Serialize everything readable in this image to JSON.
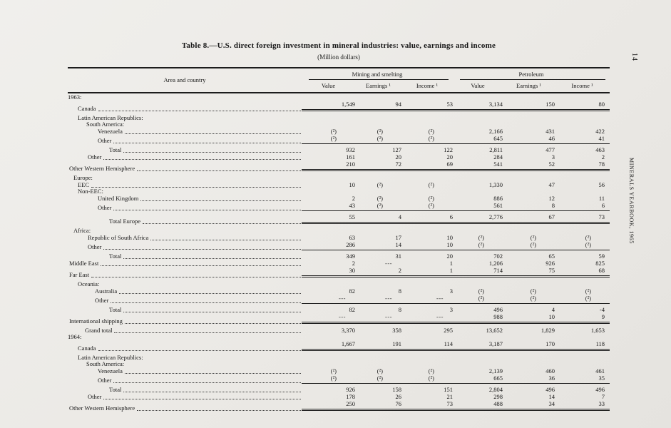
{
  "page": {
    "page_number": "14",
    "margin_text": "MINERALS YEARBOOK, 1965"
  },
  "table": {
    "title": "Table 8.—U.S. direct foreign investment in mineral industries:  value, earnings and income",
    "subtitle": "(Million dollars)",
    "stub_header": "Area and country",
    "col_groups": [
      {
        "label": "Mining and smelting",
        "cols": [
          "Value",
          "Earnings ¹",
          "Income ¹"
        ]
      },
      {
        "label": "Petroleum",
        "cols": [
          "Value",
          "Earnings ¹",
          "Income ¹"
        ]
      }
    ],
    "rows": [
      {
        "label": "1963:",
        "indent": 0,
        "leader": false,
        "cells": null
      },
      {
        "label": "Canada",
        "indent": 14,
        "leader": true,
        "cells": [
          "1,549",
          "94",
          "53",
          "3,134",
          "150",
          "80"
        ],
        "rule_below": "double"
      },
      {
        "label": "Latin American Republics:",
        "indent": 14,
        "leader": false,
        "cells": null,
        "gap_above": 4
      },
      {
        "label": "South America:",
        "indent": 26,
        "leader": false,
        "cells": null
      },
      {
        "label": "Venezuela",
        "indent": 42,
        "leader": true,
        "cells": [
          "(²)",
          "(²)",
          "(²)",
          "2,166",
          "431",
          "422"
        ]
      },
      {
        "label": "Other",
        "indent": 42,
        "leader": true,
        "cells": [
          "(²)",
          "(²)",
          "(²)",
          "645",
          "46",
          "41"
        ],
        "rule_below": "single"
      },
      {
        "label": "Total",
        "indent": 58,
        "leader": true,
        "cells": [
          "932",
          "127",
          "122",
          "2,811",
          "477",
          "463"
        ],
        "gap_above": 3
      },
      {
        "label": "Other",
        "indent": 28,
        "leader": true,
        "cells": [
          "161",
          "20",
          "20",
          "284",
          "3",
          "2"
        ]
      },
      {
        "label": "Other Western Hemisphere",
        "indent": 2,
        "leader": true,
        "cells": [
          "210",
          "72",
          "69",
          "541",
          "52",
          "78"
        ],
        "rule_below": "double"
      },
      {
        "label": "Europe:",
        "indent": 8,
        "leader": false,
        "cells": null,
        "gap_above": 4
      },
      {
        "label": "EEC",
        "indent": 14,
        "leader": true,
        "cells": [
          "10",
          "(²)",
          "(²)",
          "1,330",
          "47",
          "56"
        ]
      },
      {
        "label": "Non-EEC:",
        "indent": 14,
        "leader": false,
        "cells": null
      },
      {
        "label": "United Kingdom",
        "indent": 42,
        "leader": true,
        "cells": [
          "2",
          "(²)",
          "(²)",
          "886",
          "12",
          "11"
        ]
      },
      {
        "label": "Other",
        "indent": 42,
        "leader": true,
        "cells": [
          "43",
          "(²)",
          "(²)",
          "561",
          "8",
          "6"
        ],
        "rule_below": "single"
      },
      {
        "label": "Total Europe",
        "indent": 58,
        "leader": true,
        "cells": [
          "55",
          "4",
          "6",
          "2,776",
          "67",
          "73"
        ],
        "gap_above": 3,
        "rule_below": "double"
      },
      {
        "label": "Africa:",
        "indent": 8,
        "leader": false,
        "cells": null,
        "gap_above": 4
      },
      {
        "label": "Republic of South Africa",
        "indent": 28,
        "leader": true,
        "cells": [
          "63",
          "17",
          "10",
          "(²)",
          "(²)",
          "(²)"
        ]
      },
      {
        "label": "Other",
        "indent": 28,
        "leader": true,
        "cells": [
          "286",
          "14",
          "10",
          "(²)",
          "(²)",
          "(²)"
        ],
        "rule_below": "single"
      },
      {
        "label": "Total",
        "indent": 58,
        "leader": true,
        "cells": [
          "349",
          "31",
          "20",
          "702",
          "65",
          "59"
        ],
        "gap_above": 3
      },
      {
        "label": "Middle East",
        "indent": 2,
        "leader": true,
        "cells": [
          "2",
          "---",
          "1",
          "1,206",
          "926",
          "825"
        ]
      },
      {
        "label": "Far East",
        "indent": 2,
        "leader": true,
        "cells": [
          "30",
          "2",
          "1",
          "714",
          "75",
          "68"
        ],
        "rule_below": "double"
      },
      {
        "label": "Oceania:",
        "indent": 14,
        "leader": false,
        "cells": null,
        "gap_above": 4
      },
      {
        "label": "Australia",
        "indent": 38,
        "leader": true,
        "cells": [
          "82",
          "8",
          "3",
          "(²)",
          "(²)",
          "(²)"
        ]
      },
      {
        "label": "Other",
        "indent": 38,
        "leader": true,
        "cells": [
          "---",
          "---",
          "---",
          "(²)",
          "(²)",
          "(²)"
        ],
        "rule_below": "single"
      },
      {
        "label": "Total",
        "indent": 58,
        "leader": true,
        "cells": [
          "82",
          "8",
          "3",
          "496",
          "4",
          "-4"
        ],
        "gap_above": 3
      },
      {
        "label": "International shipping",
        "indent": 2,
        "leader": true,
        "cells": [
          "---",
          "---",
          "---",
          "988",
          "10",
          "9"
        ],
        "rule_below": "double"
      },
      {
        "label": "Grand total",
        "indent": 24,
        "leader": true,
        "cells": [
          "3,370",
          "358",
          "295",
          "13,652",
          "1,829",
          "1,653"
        ],
        "gap_above": 3
      },
      {
        "label": "1964:",
        "indent": 0,
        "leader": false,
        "cells": null
      },
      {
        "label": "Canada",
        "indent": 14,
        "leader": true,
        "cells": [
          "1,667",
          "191",
          "114",
          "3,187",
          "170",
          "118"
        ],
        "rule_below": "double"
      },
      {
        "label": "Latin American Republics:",
        "indent": 14,
        "leader": false,
        "cells": null,
        "gap_above": 4
      },
      {
        "label": "South America:",
        "indent": 26,
        "leader": false,
        "cells": null
      },
      {
        "label": "Venezuela",
        "indent": 42,
        "leader": true,
        "cells": [
          "(²)",
          "(²)",
          "(²)",
          "2,139",
          "460",
          "461"
        ]
      },
      {
        "label": "Other",
        "indent": 42,
        "leader": true,
        "cells": [
          "(²)",
          "(²)",
          "(²)",
          "665",
          "36",
          "35"
        ],
        "rule_below": "single"
      },
      {
        "label": "Total",
        "indent": 58,
        "leader": true,
        "cells": [
          "926",
          "158",
          "151",
          "2,804",
          "496",
          "496"
        ],
        "gap_above": 3
      },
      {
        "label": "Other",
        "indent": 28,
        "leader": true,
        "cells": [
          "178",
          "26",
          "21",
          "298",
          "14",
          "7"
        ]
      },
      {
        "label": "Other Western Hemisphere",
        "indent": 2,
        "leader": true,
        "cells": [
          "250",
          "76",
          "73",
          "488",
          "34",
          "33"
        ],
        "rule_below": "double"
      }
    ]
  }
}
